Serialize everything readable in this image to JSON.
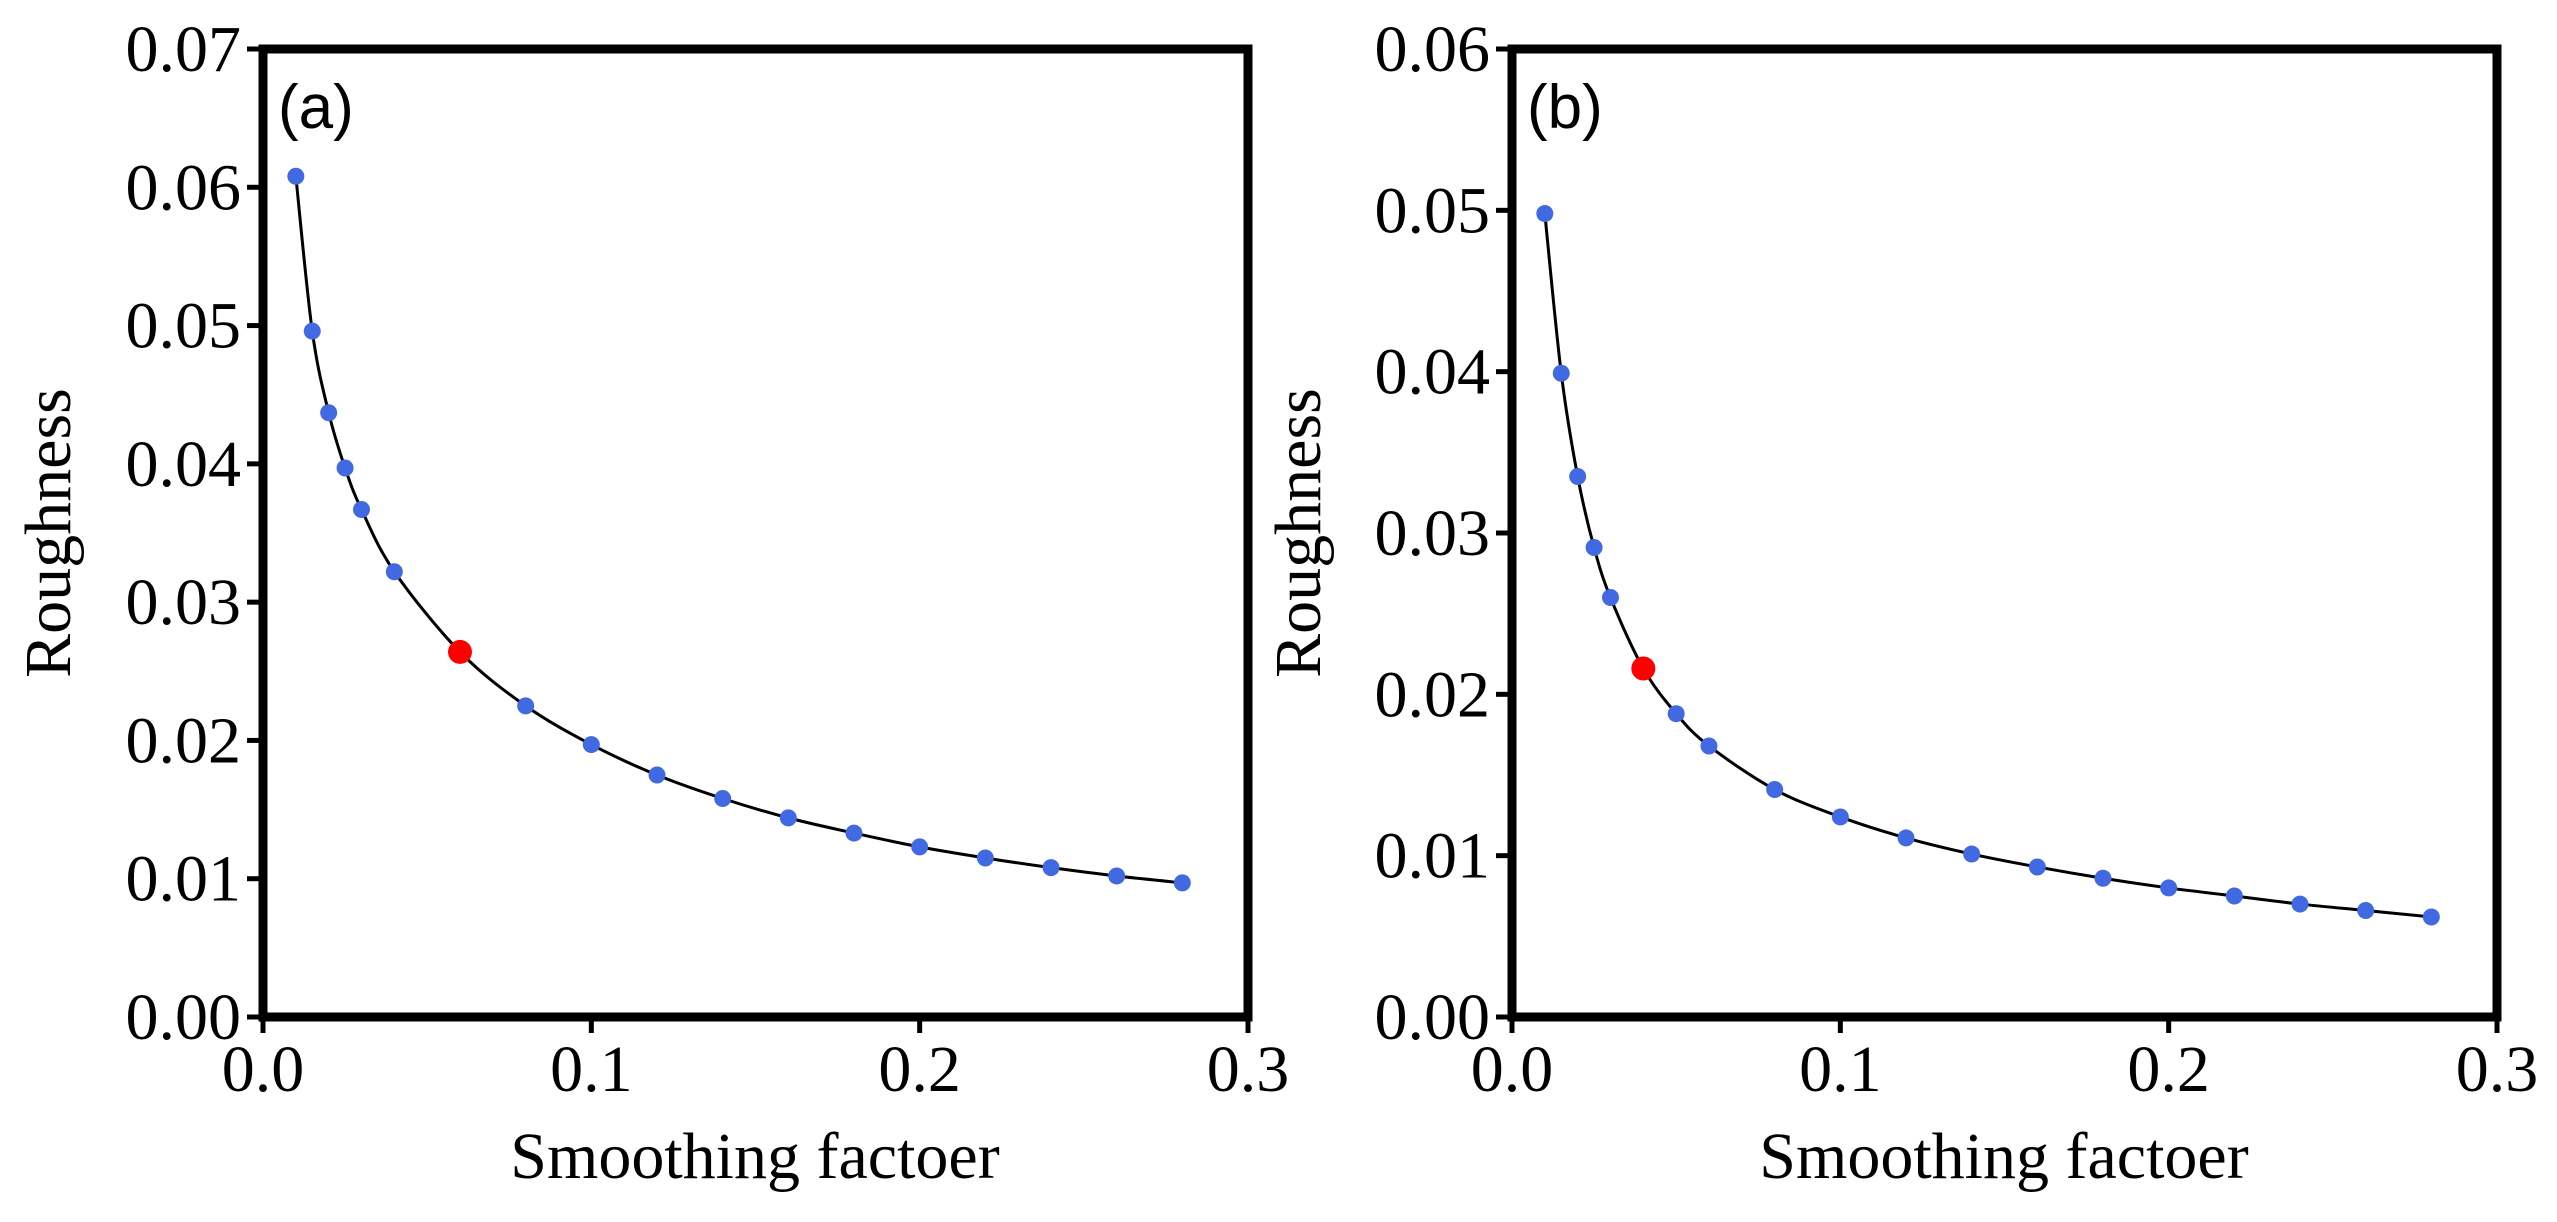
{
  "chart_data": [
    {
      "type": "line",
      "panel_label": "(a)",
      "xlabel": "Smoothing factoer",
      "ylabel": "Roughness",
      "xlim": [
        0.0,
        0.3
      ],
      "ylim": [
        0.0,
        0.07
      ],
      "xticks": [
        "0.0",
        "0.1",
        "0.2",
        "0.3"
      ],
      "yticks": [
        "0.00",
        "0.01",
        "0.02",
        "0.03",
        "0.04",
        "0.05",
        "0.06",
        "0.07"
      ],
      "grid": false,
      "x": [
        0.01,
        0.015,
        0.02,
        0.025,
        0.03,
        0.04,
        0.06,
        0.08,
        0.1,
        0.12,
        0.14,
        0.16,
        0.18,
        0.2,
        0.22,
        0.24,
        0.26,
        0.28
      ],
      "y": [
        0.0608,
        0.0496,
        0.0437,
        0.0397,
        0.0367,
        0.0322,
        0.0264,
        0.0225,
        0.0197,
        0.0175,
        0.0158,
        0.0144,
        0.0133,
        0.0123,
        0.0115,
        0.0108,
        0.0102,
        0.0097
      ],
      "highlight": {
        "x": 0.06,
        "y": 0.0264
      },
      "line_color": "#000000",
      "marker_color": "#4169e1",
      "highlight_color": "#ff0000"
    },
    {
      "type": "line",
      "panel_label": "(b)",
      "xlabel": "Smoothing factoer",
      "ylabel": "Roughness",
      "xlim": [
        0.0,
        0.3
      ],
      "ylim": [
        0.0,
        0.06
      ],
      "xticks": [
        "0.0",
        "0.1",
        "0.2",
        "0.3"
      ],
      "yticks": [
        "0.00",
        "0.01",
        "0.02",
        "0.03",
        "0.04",
        "0.05",
        "0.06"
      ],
      "grid": false,
      "x": [
        0.01,
        0.015,
        0.02,
        0.025,
        0.03,
        0.04,
        0.05,
        0.06,
        0.08,
        0.1,
        0.12,
        0.14,
        0.16,
        0.18,
        0.2,
        0.22,
        0.24,
        0.26,
        0.28
      ],
      "y": [
        0.0498,
        0.0399,
        0.0335,
        0.0291,
        0.026,
        0.0216,
        0.0188,
        0.0168,
        0.0141,
        0.0124,
        0.0111,
        0.0101,
        0.0093,
        0.0086,
        0.008,
        0.0075,
        0.007,
        0.0066,
        0.0062
      ],
      "highlight": {
        "x": 0.04,
        "y": 0.0216
      },
      "line_color": "#000000",
      "marker_color": "#4169e1",
      "highlight_color": "#ff0000"
    }
  ]
}
